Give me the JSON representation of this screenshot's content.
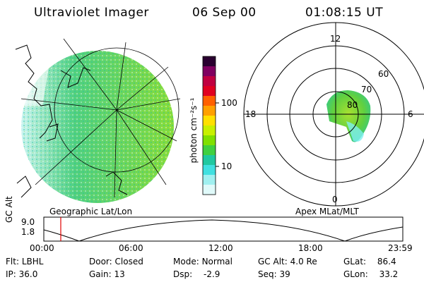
{
  "header": {
    "title": "Ultraviolet Imager",
    "date": "06 Sep 00",
    "time": "01:08:15 UT"
  },
  "geo_panel": {
    "caption": "Geographic Lat/Lon"
  },
  "colorbar": {
    "label": "photon cm⁻²s⁻¹",
    "ticks": [
      "100",
      "10"
    ],
    "colors": [
      "#2a0030",
      "#800060",
      "#c00040",
      "#e00020",
      "#ff6000",
      "#ffa000",
      "#ffe000",
      "#c8f000",
      "#80e000",
      "#40d040",
      "#20c8a0",
      "#40e0e0",
      "#a0f0f0",
      "#e0fafa"
    ]
  },
  "polar_panel": {
    "caption": "Apex MLat/MLT",
    "mlt_labels": {
      "top": "12",
      "bottom": "0",
      "left": "18",
      "right": "6"
    },
    "lat_labels": [
      "60",
      "70",
      "80"
    ]
  },
  "timeline": {
    "ylabel": "GC Alt",
    "y_ticks": [
      "9.0",
      "1.8"
    ],
    "x_ticks": [
      "00:00",
      "06:00",
      "12:00",
      "18:00",
      "23:59"
    ],
    "marker_time": "01:08",
    "marker_color": "#e00000"
  },
  "status": {
    "row1": [
      {
        "key": "Flt:",
        "value": "LBHL"
      },
      {
        "key": "Door:",
        "value": "Closed"
      },
      {
        "key": "Mode:",
        "value": "Normal"
      },
      {
        "key": "GC Alt:",
        "value": "4.0 Re"
      },
      {
        "key": "GLat:",
        "value": "86.4"
      }
    ],
    "row2": [
      {
        "key": "IP:",
        "value": "36.0"
      },
      {
        "key": "Gain:",
        "value": "13"
      },
      {
        "key": "Dsp:",
        "value": "-2.9"
      },
      {
        "key": "Seq:",
        "value": "39"
      },
      {
        "key": "GLon:",
        "value": "33.2"
      }
    ]
  }
}
